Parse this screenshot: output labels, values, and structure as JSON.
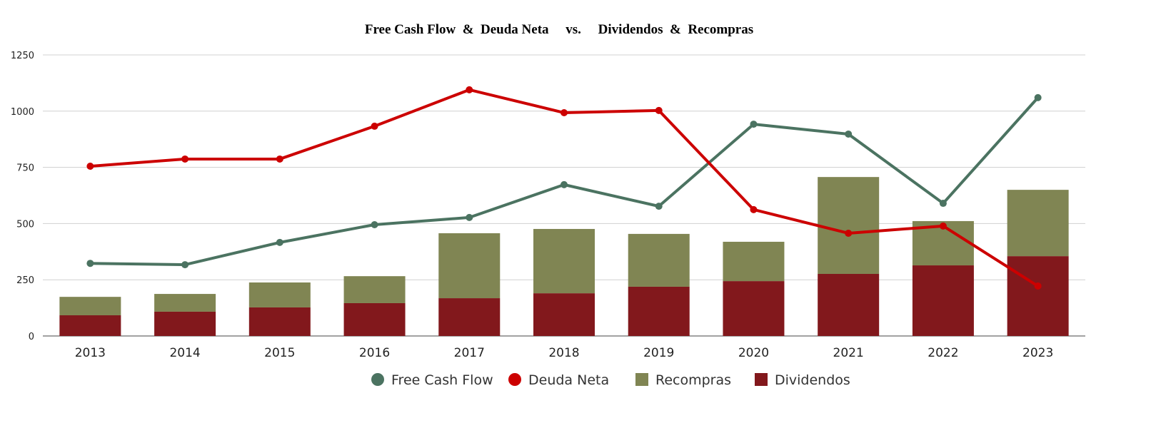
{
  "chart_data": {
    "type": "bar+line",
    "title": "Free Cash Flow  &  Deuda Neta     vs.     Dividendos  &  Recompras",
    "categories": [
      "2013",
      "2014",
      "2015",
      "2016",
      "2017",
      "2018",
      "2019",
      "2020",
      "2021",
      "2022",
      "2023"
    ],
    "ylim": [
      0,
      1250
    ],
    "yticks": [
      0,
      250,
      500,
      750,
      1000,
      1250
    ],
    "grid": true,
    "legend_position": "bottom",
    "bar_series": [
      {
        "name": "Dividendos",
        "color": "#82181c",
        "values": [
          92,
          108,
          127,
          146,
          168,
          190,
          219,
          244,
          276,
          314,
          355
        ]
      },
      {
        "name": "Recompras",
        "color": "#808553",
        "values": [
          82,
          79,
          111,
          120,
          289,
          286,
          235,
          175,
          431,
          197,
          295
        ]
      }
    ],
    "line_series": [
      {
        "name": "Free Cash Flow",
        "color": "#4b7361",
        "values": [
          323,
          317,
          416,
          495,
          527,
          673,
          577,
          942,
          898,
          590,
          1060
        ]
      },
      {
        "name": "Deuda Neta",
        "color": "#cc0000",
        "values": [
          755,
          787,
          787,
          933,
          1095,
          993,
          1003,
          562,
          457,
          489,
          222
        ]
      }
    ],
    "legend": [
      "Free Cash Flow",
      "Deuda Neta",
      "Recompras",
      "Dividendos"
    ]
  }
}
